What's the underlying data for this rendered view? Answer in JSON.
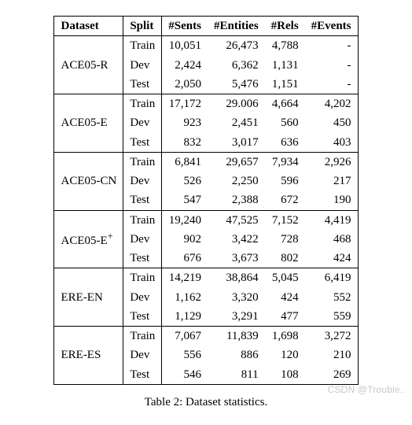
{
  "columns": [
    "Dataset",
    "Split",
    "#Sents",
    "#Entities",
    "#Rels",
    "#Events"
  ],
  "datasets": [
    {
      "name": "ACE05-R",
      "name_html": "ACE05-R",
      "rows": [
        {
          "split": "Train",
          "sents": "10,051",
          "entities": "26,473",
          "rels": "4,788",
          "events": "-"
        },
        {
          "split": "Dev",
          "sents": "2,424",
          "entities": "6,362",
          "rels": "1,131",
          "events": "-"
        },
        {
          "split": "Test",
          "sents": "2,050",
          "entities": "5,476",
          "rels": "1,151",
          "events": "-"
        }
      ]
    },
    {
      "name": "ACE05-E",
      "name_html": "ACE05-E",
      "rows": [
        {
          "split": "Train",
          "sents": "17,172",
          "entities": "29.006",
          "rels": "4,664",
          "events": "4,202"
        },
        {
          "split": "Dev",
          "sents": "923",
          "entities": "2,451",
          "rels": "560",
          "events": "450"
        },
        {
          "split": "Test",
          "sents": "832",
          "entities": "3,017",
          "rels": "636",
          "events": "403"
        }
      ]
    },
    {
      "name": "ACE05-CN",
      "name_html": "ACE05-CN",
      "rows": [
        {
          "split": "Train",
          "sents": "6,841",
          "entities": "29,657",
          "rels": "7,934",
          "events": "2,926"
        },
        {
          "split": "Dev",
          "sents": "526",
          "entities": "2,250",
          "rels": "596",
          "events": "217"
        },
        {
          "split": "Test",
          "sents": "547",
          "entities": "2,388",
          "rels": "672",
          "events": "190"
        }
      ]
    },
    {
      "name": "ACE05-E+",
      "name_html": "ACE05-E<sup>+</sup>",
      "rows": [
        {
          "split": "Train",
          "sents": "19,240",
          "entities": "47,525",
          "rels": "7,152",
          "events": "4,419"
        },
        {
          "split": "Dev",
          "sents": "902",
          "entities": "3,422",
          "rels": "728",
          "events": "468"
        },
        {
          "split": "Test",
          "sents": "676",
          "entities": "3,673",
          "rels": "802",
          "events": "424"
        }
      ]
    },
    {
      "name": "ERE-EN",
      "name_html": "ERE-EN",
      "rows": [
        {
          "split": "Train",
          "sents": "14,219",
          "entities": "38,864",
          "rels": "5,045",
          "events": "6,419"
        },
        {
          "split": "Dev",
          "sents": "1,162",
          "entities": "3,320",
          "rels": "424",
          "events": "552"
        },
        {
          "split": "Test",
          "sents": "1,129",
          "entities": "3,291",
          "rels": "477",
          "events": "559"
        }
      ]
    },
    {
      "name": "ERE-ES",
      "name_html": "ERE-ES",
      "rows": [
        {
          "split": "Train",
          "sents": "7,067",
          "entities": "11,839",
          "rels": "1,698",
          "events": "3,272"
        },
        {
          "split": "Dev",
          "sents": "556",
          "entities": "886",
          "rels": "120",
          "events": "210"
        },
        {
          "split": "Test",
          "sents": "546",
          "entities": "811",
          "rels": "108",
          "events": "269"
        }
      ]
    }
  ],
  "caption": "Table 2: Dataset statistics.",
  "watermark": "CSDN @Trouble.."
}
